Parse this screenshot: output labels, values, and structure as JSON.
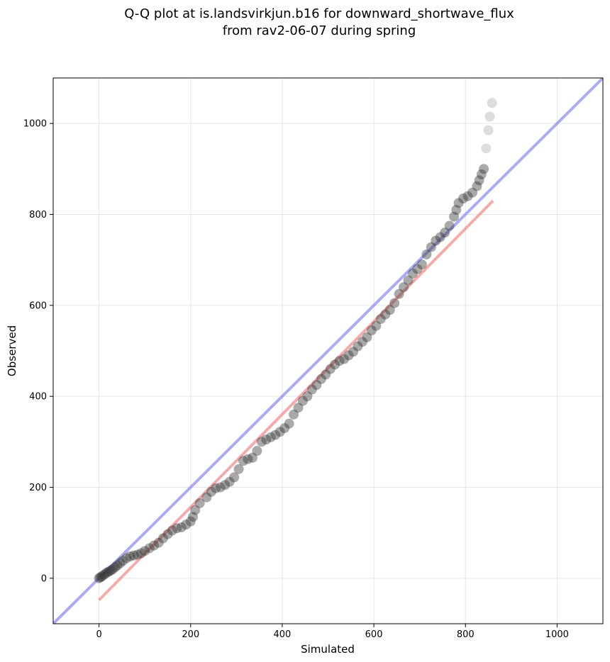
{
  "chart_data": {
    "type": "scatter",
    "title_line1": "Q-Q plot at is.landsvirkjun.b16 for downward_shortwave_flux",
    "title_line2": "from rav2-06-07 during spring",
    "xlabel": "Simulated",
    "ylabel": "Observed",
    "xlim": [
      -100,
      1100
    ],
    "ylim": [
      -100,
      1100
    ],
    "xticks": [
      0,
      200,
      400,
      600,
      800,
      1000
    ],
    "yticks": [
      0,
      200,
      400,
      600,
      800,
      1000
    ],
    "grid": true,
    "colors": {
      "points": "#333333",
      "one_to_one_line": "#6666ee",
      "fit_line": "#ee6666"
    },
    "series": [
      {
        "values": [
          [
            0,
            0
          ],
          [
            3,
            2
          ],
          [
            6,
            4
          ],
          [
            10,
            7
          ],
          [
            14,
            10
          ],
          [
            18,
            13
          ],
          [
            22,
            15
          ],
          [
            26,
            17
          ],
          [
            30,
            20
          ],
          [
            35,
            24
          ],
          [
            40,
            28
          ],
          [
            46,
            33
          ],
          [
            52,
            38
          ],
          [
            60,
            44
          ],
          [
            68,
            48
          ],
          [
            76,
            50
          ],
          [
            84,
            52
          ],
          [
            92,
            55
          ],
          [
            100,
            60
          ],
          [
            110,
            66
          ],
          [
            120,
            72
          ],
          [
            130,
            78
          ],
          [
            140,
            88
          ],
          [
            150,
            97
          ],
          [
            160,
            105
          ],
          [
            170,
            110
          ],
          [
            180,
            112
          ],
          [
            190,
            118
          ],
          [
            200,
            125
          ],
          [
            205,
            135
          ],
          [
            210,
            150
          ],
          [
            220,
            165
          ],
          [
            235,
            178
          ],
          [
            245,
            190
          ],
          [
            255,
            198
          ],
          [
            265,
            200
          ],
          [
            275,
            205
          ],
          [
            285,
            212
          ],
          [
            295,
            222
          ],
          [
            305,
            240
          ],
          [
            315,
            258
          ],
          [
            325,
            262
          ],
          [
            335,
            265
          ],
          [
            345,
            280
          ],
          [
            355,
            300
          ],
          [
            365,
            305
          ],
          [
            375,
            310
          ],
          [
            385,
            315
          ],
          [
            395,
            322
          ],
          [
            405,
            330
          ],
          [
            415,
            340
          ],
          [
            425,
            360
          ],
          [
            435,
            375
          ],
          [
            445,
            390
          ],
          [
            455,
            400
          ],
          [
            465,
            415
          ],
          [
            475,
            425
          ],
          [
            485,
            438
          ],
          [
            495,
            448
          ],
          [
            505,
            460
          ],
          [
            515,
            470
          ],
          [
            525,
            478
          ],
          [
            535,
            482
          ],
          [
            545,
            490
          ],
          [
            555,
            498
          ],
          [
            565,
            510
          ],
          [
            575,
            520
          ],
          [
            585,
            530
          ],
          [
            595,
            545
          ],
          [
            605,
            555
          ],
          [
            615,
            570
          ],
          [
            625,
            580
          ],
          [
            635,
            590
          ],
          [
            645,
            605
          ],
          [
            655,
            625
          ],
          [
            665,
            640
          ],
          [
            675,
            655
          ],
          [
            685,
            670
          ],
          [
            695,
            680
          ],
          [
            705,
            690
          ],
          [
            715,
            712
          ],
          [
            725,
            728
          ],
          [
            735,
            742
          ],
          [
            745,
            750
          ],
          [
            755,
            760
          ],
          [
            765,
            775
          ],
          [
            775,
            795
          ],
          [
            780,
            810
          ],
          [
            785,
            825
          ],
          [
            795,
            835
          ],
          [
            805,
            840
          ],
          [
            815,
            848
          ],
          [
            825,
            862
          ],
          [
            830,
            875
          ],
          [
            835,
            888
          ],
          [
            840,
            900
          ],
          [
            845,
            945
          ],
          [
            850,
            985
          ],
          [
            853,
            1015
          ],
          [
            858,
            1045
          ]
        ],
        "fit_line": [
          [
            0,
            -48
          ],
          [
            860,
            830
          ]
        ]
      }
    ]
  }
}
